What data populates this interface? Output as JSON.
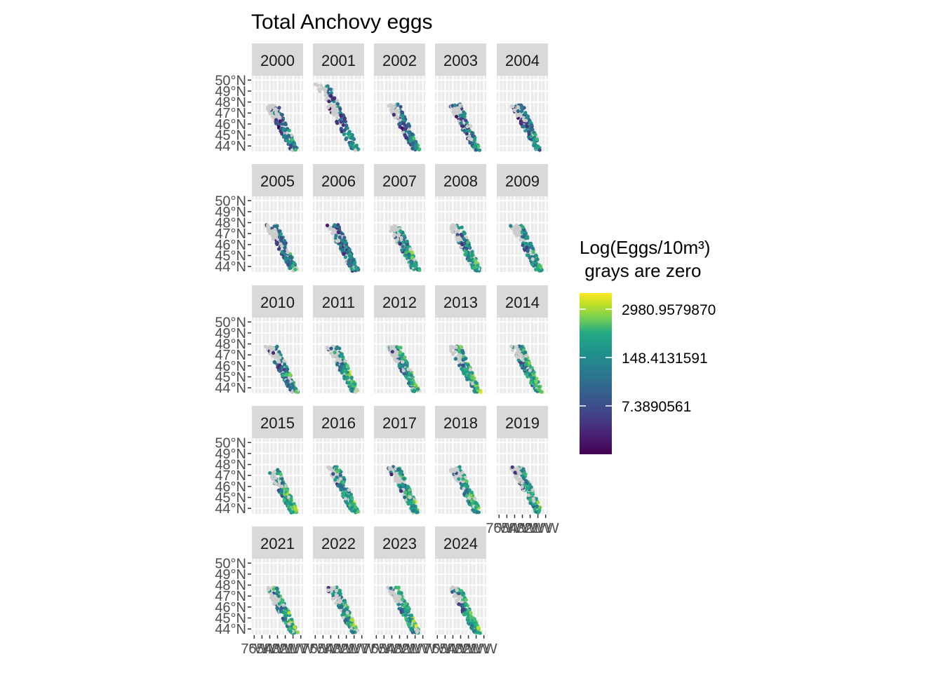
{
  "chart_data": {
    "type": "faceted-map",
    "title": "Total Anchovy eggs",
    "facets": [
      "2000",
      "2001",
      "2002",
      "2003",
      "2004",
      "2005",
      "2006",
      "2007",
      "2008",
      "2009",
      "2010",
      "2011",
      "2012",
      "2013",
      "2014",
      "2015",
      "2016",
      "2017",
      "2018",
      "2019",
      "2021",
      "2022",
      "2023",
      "2024"
    ],
    "ncol": 5,
    "y_ticks": [
      "50°N",
      "49°N",
      "48°N",
      "47°N",
      "46°N",
      "45°N",
      "44°N"
    ],
    "y_values": [
      50,
      49,
      48,
      47,
      46,
      45,
      44
    ],
    "x_ticks": [
      "7°W",
      "6°W",
      "5°W",
      "4°W",
      "3°W",
      "2°W",
      "1°W"
    ],
    "x_values": [
      -7,
      -6,
      -5,
      -4,
      -3,
      -2,
      -1
    ],
    "xlim": [
      -7.3,
      -0.7
    ],
    "ylim": [
      43.5,
      50.4
    ],
    "legend": {
      "title_line1": "Log(Eggs/10m³)",
      "title_line2": " grays are zero",
      "labels": [
        "2980.9579870",
        "148.4131591",
        "7.3890561"
      ],
      "label_positions": [
        0.9,
        0.6,
        0.3
      ],
      "colormap": "viridis"
    },
    "zero_color": "#cccccc",
    "panel_background": "#ebebeb",
    "strip_background": "#d9d9d9"
  }
}
